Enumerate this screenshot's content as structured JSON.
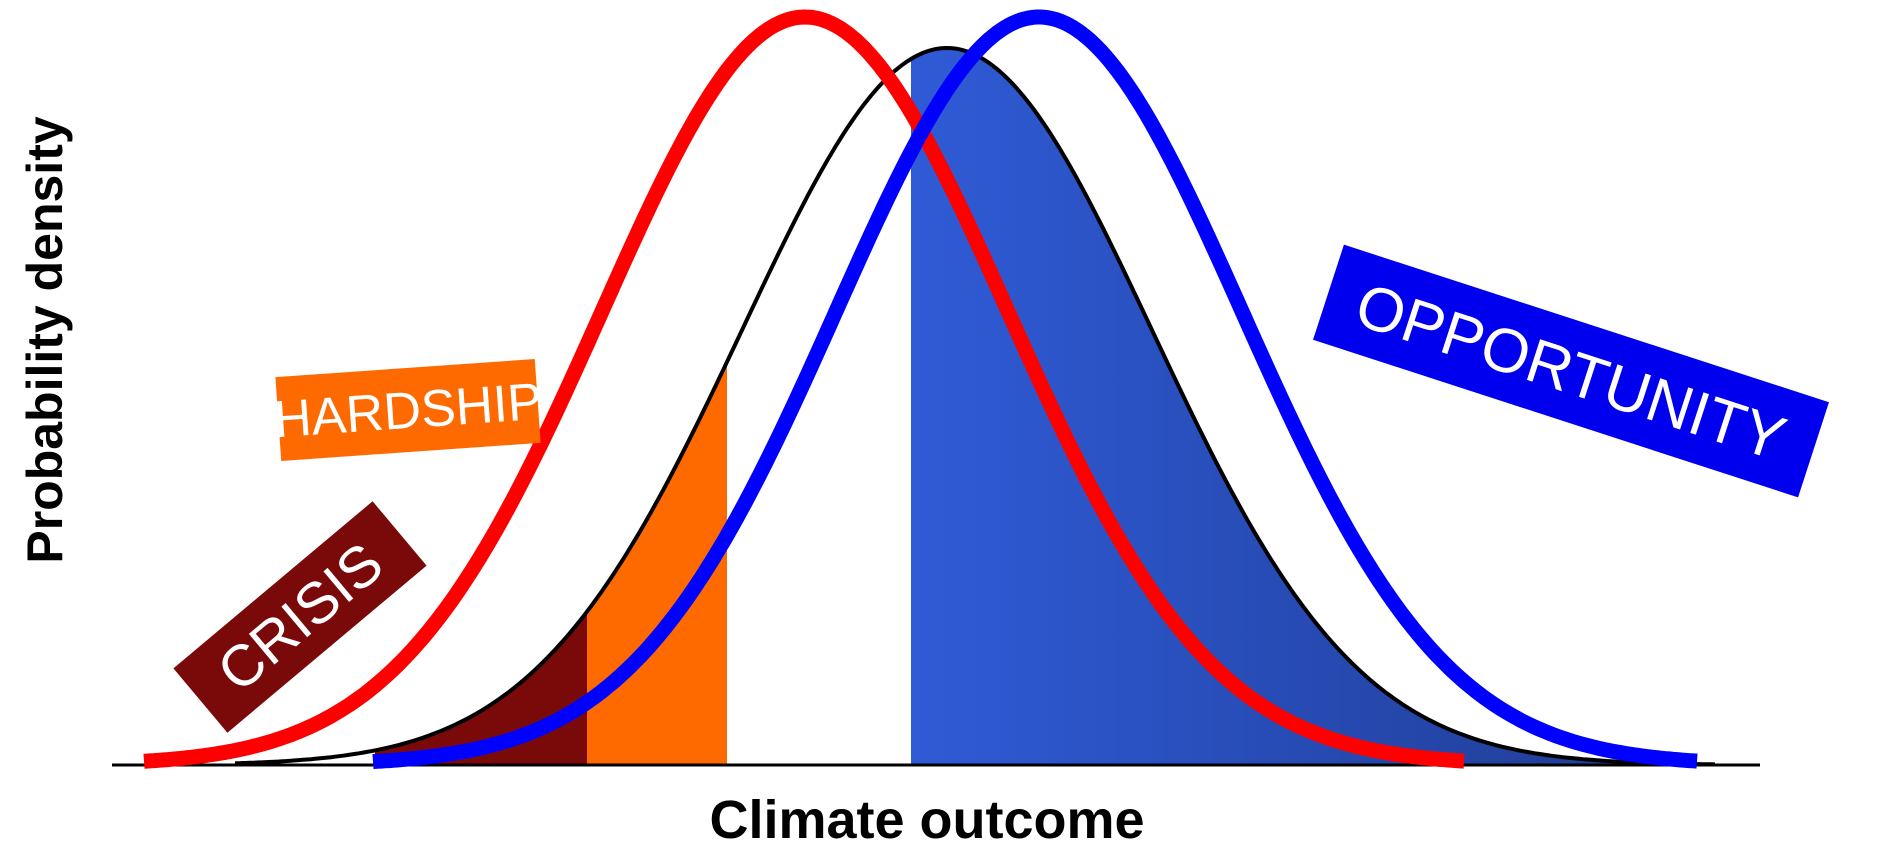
{
  "diagram": {
    "x_axis_label": "Climate outcome",
    "y_axis_label": "Probability density",
    "labels": {
      "crisis": "CRISIS",
      "hardship": "HARDSHIP",
      "opportunity": "OPPORTUNITY"
    },
    "curves": [
      {
        "id": "baseline",
        "color": "#000000"
      },
      {
        "id": "shifted-low",
        "color": "#ff0000"
      },
      {
        "id": "shifted-high",
        "color": "#0000ff"
      }
    ],
    "region_colors": {
      "crisis": "#7a0a0a",
      "hardship": "#ff6a00",
      "opportunity_start": "#2f5bd6",
      "opportunity_end": "#1f3a8f",
      "opportunity_label_bg": "#0000ee"
    }
  }
}
